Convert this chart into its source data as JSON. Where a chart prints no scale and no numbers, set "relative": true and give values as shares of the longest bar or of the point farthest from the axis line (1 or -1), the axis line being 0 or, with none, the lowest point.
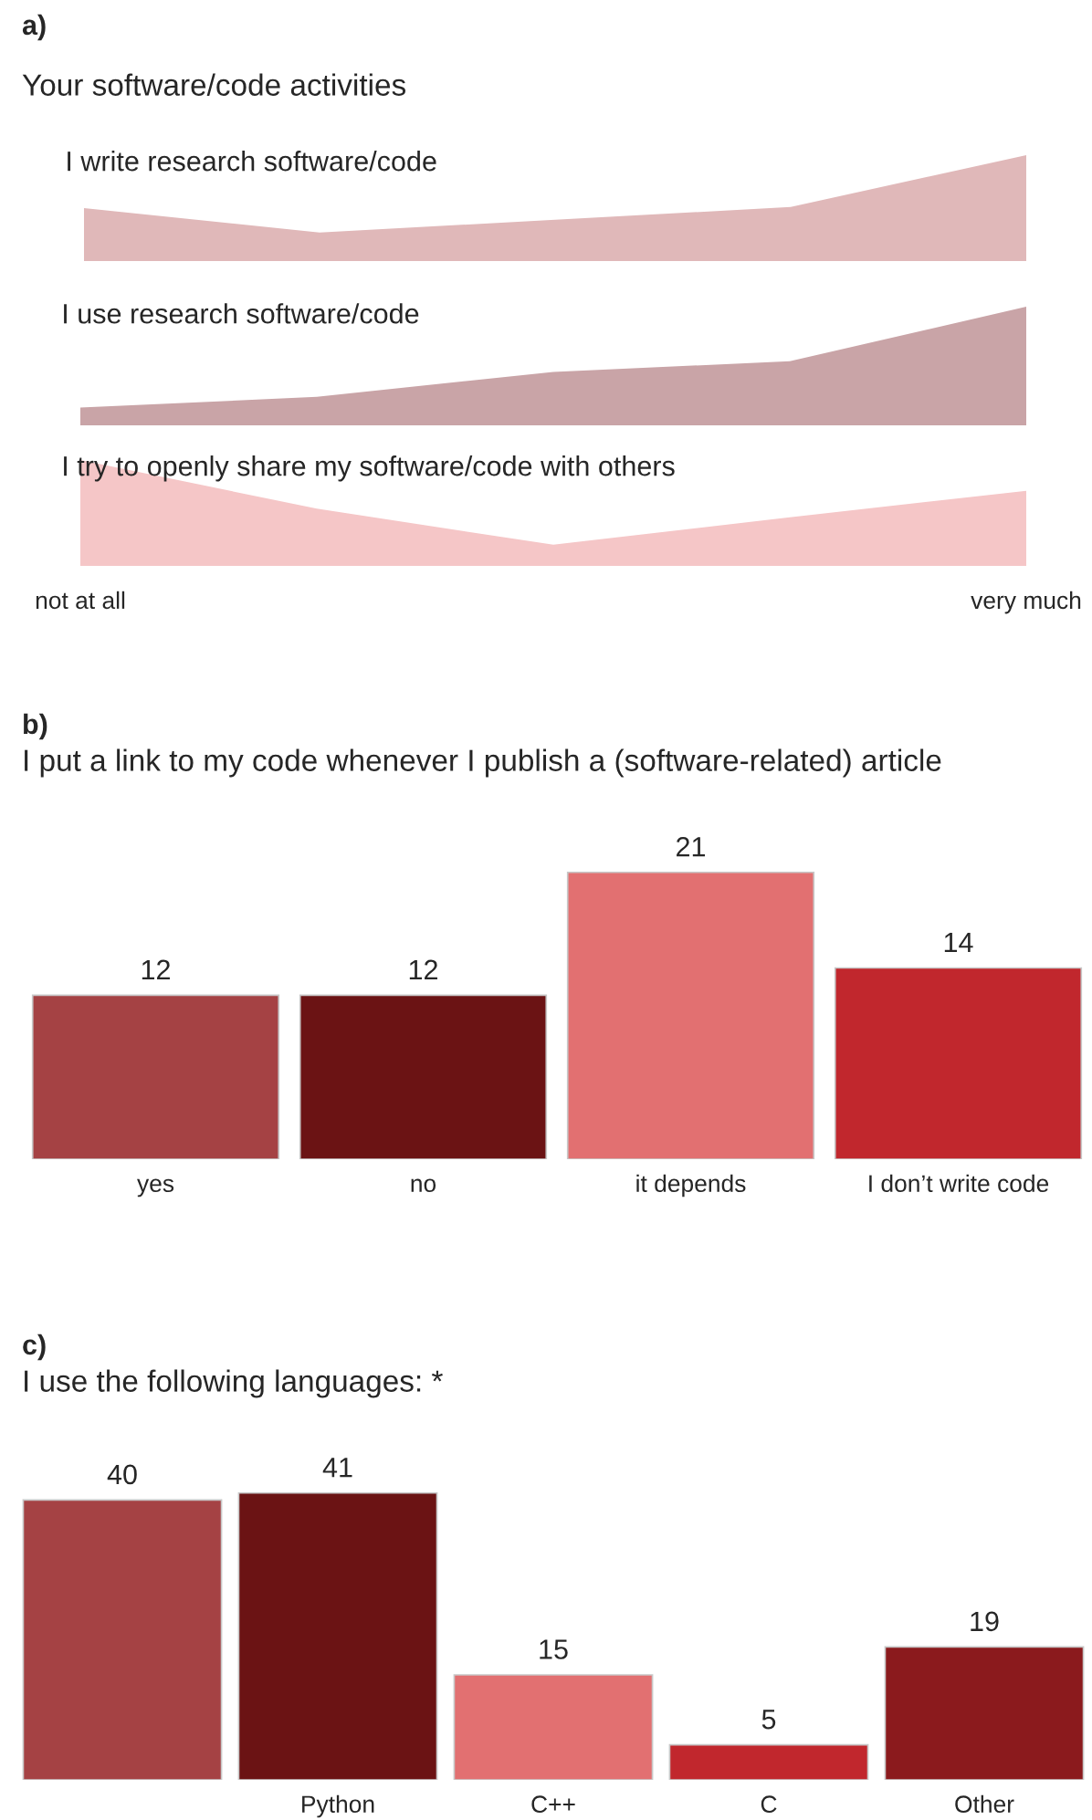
{
  "chart_data": [
    {
      "type": "area",
      "title": "a)",
      "subtitle": "Your software/code activities",
      "annotations": [
        "I write research software/code"
      ],
      "relative": true,
      "categories": [
        null,
        null,
        null,
        null,
        null
      ],
      "tick_labels": false,
      "series": [
        {
          "color": "#e0b8b9",
          "values": [
            0.5,
            0.27,
            0.39,
            0.51,
            1
          ]
        }
      ]
    },
    {
      "type": "area",
      "annotations": [
        "I use research software/code"
      ],
      "relative": true,
      "categories": [
        null,
        null,
        null,
        null,
        null
      ],
      "tick_labels": false,
      "series": [
        {
          "color": "#c9a4a7",
          "values": [
            0.15,
            0.24,
            0.45,
            0.54,
            1
          ]
        }
      ]
    },
    {
      "type": "area",
      "annotations": [
        "I try to openly share my software/code with others"
      ],
      "relative": true,
      "categories": [
        "not at all",
        null,
        null,
        null,
        "very much"
      ],
      "tick_labels": "x",
      "series": [
        {
          "color": "#f5c6c7",
          "values": [
            1,
            0.54,
            0.2,
            0.46,
            0.71
          ]
        }
      ]
    },
    {
      "type": "bar",
      "title": "b)",
      "subtitle": "I put a link to my code whenever I publish a (software-related) article",
      "categories": [
        "yes",
        "no",
        "it depends",
        "I don’t write code"
      ],
      "data_labels": true,
      "tick_labels": "x",
      "values": [
        12,
        12,
        21,
        14
      ],
      "colors": [
        "#a54244",
        "#6b1314",
        "#e27071",
        "#c1272d"
      ]
    },
    {
      "type": "bar",
      "title": "c)",
      "subtitle": "I use the following languages: *",
      "categories": [
        null,
        "Python",
        "C++",
        "C",
        "Other"
      ],
      "data_labels": true,
      "tick_labels": "x",
      "values": [
        40,
        41,
        15,
        5,
        19
      ],
      "colors": [
        "#a54244",
        "#6b1314",
        "#e27071",
        "#c1272d",
        "#8b1a1d"
      ]
    }
  ]
}
